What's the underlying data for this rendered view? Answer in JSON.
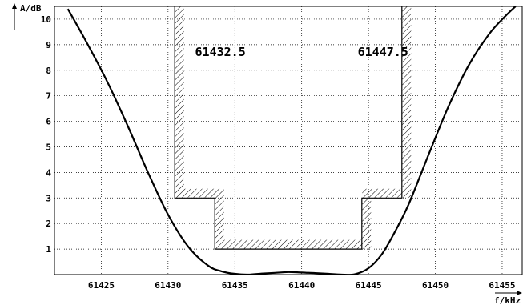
{
  "chart_data": {
    "type": "line",
    "xlabel": "f/kHz",
    "ylabel": "A/dB",
    "xlim": [
      61421.5,
      61456.5
    ],
    "ylim": [
      0,
      10.5
    ],
    "x_ticks": [
      61425,
      61430,
      61435,
      61440,
      61445,
      61450,
      61455
    ],
    "y_ticks": [
      1,
      2,
      3,
      4,
      5,
      6,
      7,
      8,
      9,
      10
    ],
    "grid": true,
    "series": [
      {
        "x": [
          61422.5,
          61424,
          61425.5,
          61427,
          61428.5,
          61430,
          61431.5,
          61433,
          61434,
          61435,
          61436,
          61437,
          61438,
          61439,
          61440,
          61441,
          61442,
          61443,
          61444,
          61445,
          61446,
          61447,
          61448,
          61449.5,
          61451,
          61452.5,
          61454,
          61455.2,
          61456
        ],
        "y": [
          10.4,
          9.0,
          7.5,
          5.8,
          4.0,
          2.35,
          1.1,
          0.35,
          0.13,
          0.03,
          0.0,
          0.04,
          0.07,
          0.1,
          0.08,
          0.06,
          0.03,
          0.0,
          0.02,
          0.25,
          0.8,
          1.7,
          2.75,
          4.7,
          6.6,
          8.2,
          9.4,
          10.1,
          10.5
        ]
      }
    ],
    "mask": {
      "outer": [
        [
          61430.5,
          10.5
        ],
        [
          61430.5,
          3
        ],
        [
          61433.5,
          3
        ],
        [
          61433.5,
          1
        ],
        [
          61444.5,
          1
        ],
        [
          61444.5,
          3
        ],
        [
          61447.5,
          3
        ],
        [
          61447.5,
          10.5
        ]
      ]
    },
    "annotations": [
      {
        "text": "61432.5",
        "x": 61432.5,
        "y": 8.55
      },
      {
        "text": "61447.5",
        "x": 61447.5,
        "y": 8.55
      }
    ]
  }
}
